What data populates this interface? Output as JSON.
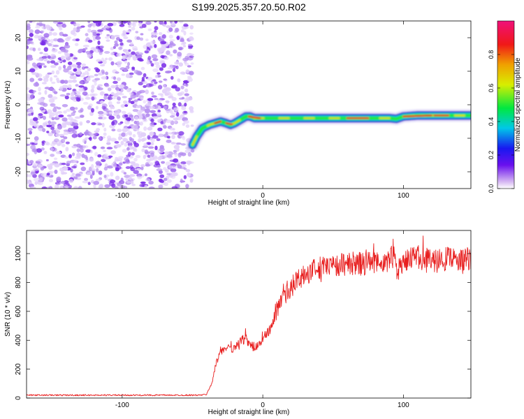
{
  "page_title": "S199.2025.357.20.50.R02",
  "colors": {
    "snr_line": "#e82020",
    "ridge_edge": "#1a14c8",
    "ridge_fill": "#22e640",
    "ridge_core": "#e81818",
    "noise_dot": "#7a2ee8",
    "axis": "#000000"
  },
  "chart_data": [
    {
      "id": "spectrogram",
      "type": "heatmap",
      "title": "S199.2025.357.20.50.R02",
      "xlabel": "Height of straight line (km)",
      "ylabel": "Frequency (Hz)",
      "xlim": [
        -168,
        148
      ],
      "ylim": [
        -25,
        25
      ],
      "xticks": [
        -100,
        0,
        100
      ],
      "yticks": [
        -20,
        -10,
        0,
        10,
        20
      ],
      "noise_region_x": [
        -168,
        -50
      ],
      "ridge": {
        "x": [
          -50,
          -47,
          -43,
          -38,
          -34,
          -30,
          -26,
          -23,
          -20,
          -16,
          -12,
          -9,
          -6,
          -2,
          0,
          10,
          20,
          30,
          40,
          50,
          60,
          70,
          80,
          90,
          95,
          100,
          110,
          120,
          130,
          148
        ],
        "y": [
          -12,
          -9.5,
          -7,
          -6,
          -5.5,
          -5,
          -5.5,
          -6,
          -5.5,
          -4.5,
          -3.5,
          -3.5,
          -4,
          -4,
          -4,
          -4,
          -4,
          -4,
          -4,
          -4,
          -4,
          -4,
          -4,
          -4,
          -4.2,
          -3.5,
          -3.2,
          -3.2,
          -3.2,
          -3.2
        ]
      },
      "colorbar": {
        "label": "Normalized spectral amplitude",
        "range": [
          0,
          1
        ],
        "ticks": [
          "0.0",
          "0.2",
          "0.4",
          "0.6",
          "0.8"
        ]
      }
    },
    {
      "id": "snr",
      "type": "line",
      "xlabel": "Height of straight line (km)",
      "ylabel": "SNR (10 * v/v)",
      "xlim": [
        -168,
        148
      ],
      "ylim": [
        0,
        1160
      ],
      "xticks": [
        -100,
        0,
        100
      ],
      "yticks": [
        0,
        200,
        400,
        600,
        800,
        1000
      ],
      "series": [
        {
          "name": "SNR",
          "x": [
            -168,
            -150,
            -100,
            -60,
            -45,
            -40,
            -36,
            -33,
            -30,
            -25,
            -20,
            -15,
            -12,
            -10,
            -5,
            0,
            5,
            10,
            15,
            20,
            25,
            30,
            35,
            40,
            45,
            50,
            60,
            70,
            80,
            90,
            93,
            95,
            100,
            110,
            120,
            130,
            140,
            148
          ],
          "values": [
            20,
            20,
            20,
            20,
            20,
            25,
            110,
            250,
            320,
            340,
            350,
            400,
            420,
            370,
            350,
            400,
            480,
            600,
            700,
            760,
            820,
            860,
            880,
            900,
            910,
            920,
            930,
            930,
            930,
            940,
            1050,
            870,
            960,
            970,
            950,
            960,
            950,
            960
          ]
        }
      ]
    }
  ]
}
